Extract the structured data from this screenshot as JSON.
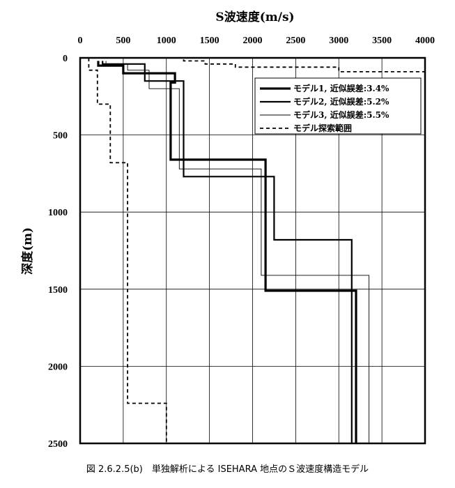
{
  "chart_data": {
    "type": "line",
    "xlabel": "S波速度(m/s)",
    "ylabel": "深度(m)",
    "xlim": [
      0,
      4000
    ],
    "ylim": [
      0,
      2500
    ],
    "y_inverted": true,
    "x_axis_position": "top",
    "x_ticks": [
      0,
      500,
      1000,
      1500,
      2000,
      2500,
      3000,
      3500,
      4000
    ],
    "y_ticks": [
      0,
      500,
      1000,
      1500,
      2000,
      2500
    ],
    "x_tick_labels": [
      "0",
      "500",
      "1000",
      "1500",
      "2000",
      "2500",
      "3000",
      "3500",
      "4000"
    ],
    "y_tick_labels": [
      "0",
      "500",
      "1000",
      "1500",
      "2000",
      "2500"
    ],
    "grid": true,
    "legend_position": "top-right",
    "series": [
      {
        "name": "モデル1, 近似誤差:3.4%",
        "style": "thick",
        "color": "#000000",
        "x": [
          210,
          210,
          500,
          500,
          1100,
          1100,
          1050,
          1050,
          2150,
          2150,
          3200,
          3200
        ],
        "y": [
          20,
          50,
          50,
          100,
          100,
          160,
          160,
          660,
          660,
          1510,
          1510,
          2500
        ]
      },
      {
        "name": "モデル2, 近似誤差:5.2%",
        "style": "medium",
        "color": "#000000",
        "x": [
          260,
          260,
          750,
          750,
          1200,
          1200,
          2250,
          2250,
          3150,
          3150
        ],
        "y": [
          20,
          40,
          40,
          150,
          150,
          770,
          770,
          1180,
          1180,
          2500
        ]
      },
      {
        "name": "モデル3, 近似誤差:5.5%",
        "style": "thin",
        "color": "#000000",
        "x": [
          300,
          300,
          550,
          550,
          800,
          800,
          1150,
          1150,
          2100,
          2100,
          3350,
          3350
        ],
        "y": [
          20,
          40,
          40,
          80,
          80,
          200,
          200,
          720,
          720,
          1410,
          1410,
          2500
        ]
      },
      {
        "name": "モデル探索範囲",
        "style": "dashed",
        "color": "#000000",
        "x": [
          100,
          100,
          200,
          200,
          350,
          350,
          550,
          550,
          1000,
          1000
        ],
        "y": [
          0,
          80,
          80,
          300,
          300,
          680,
          680,
          2240,
          2240,
          2500
        ]
      },
      {
        "name": "",
        "style": "dashed",
        "color": "#000000",
        "x": [
          1000,
          1200,
          1200,
          1450,
          1450,
          1800,
          1800,
          3000,
          3000,
          4000
        ],
        "y": [
          0,
          0,
          20,
          20,
          40,
          40,
          60,
          60,
          90,
          90
        ]
      }
    ]
  },
  "caption": "図 2.6.2.5(b)　単独解析による ISEHARA 地点のＳ波速度構造モデル"
}
